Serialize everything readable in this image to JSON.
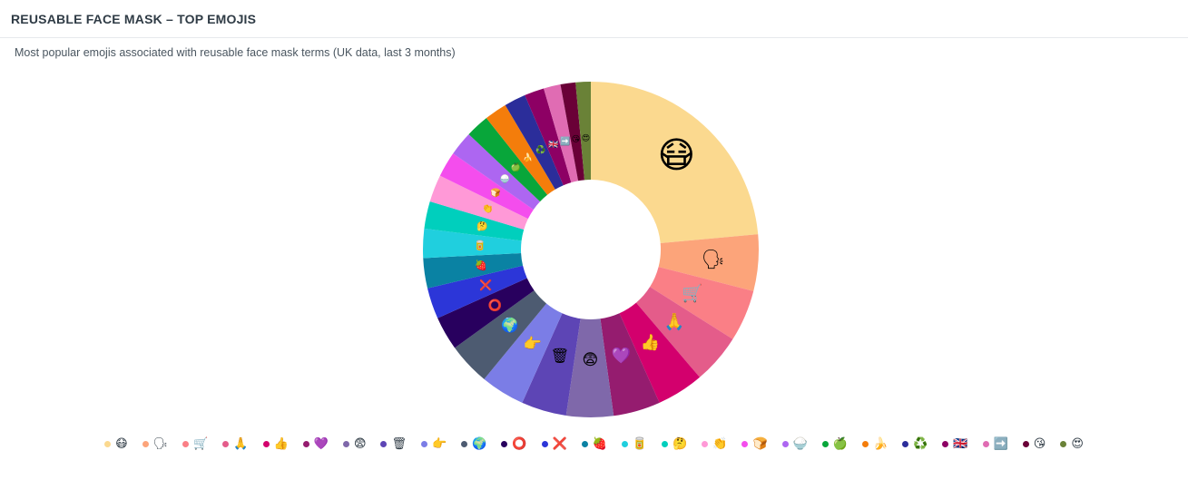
{
  "header": {
    "title": "REUSABLE FACE MASK – TOP EMOJIS"
  },
  "subtitle": "Most popular emojis associated with reusable face mask terms (UK data, last 3 months)",
  "chart_data": {
    "type": "pie",
    "donut": true,
    "legend_position": "bottom",
    "categories": [
      "😷",
      "🗣",
      "🛒",
      "🙏",
      "👍",
      "💜",
      "😨",
      "🗑",
      "👉",
      "🌍",
      "⭕",
      "❌",
      "🍓",
      "🥫",
      "🤔",
      "👏",
      "🍞",
      "🍚",
      "🍏",
      "🍌",
      "♻️",
      "🇬🇧",
      "➡️",
      "😘",
      "😍"
    ],
    "values": [
      26.0,
      6.0,
      5.5,
      5.3,
      5.0,
      5.0,
      5.0,
      4.8,
      4.7,
      4.5,
      3.6,
      3.3,
      3.2,
      3.1,
      2.9,
      2.9,
      2.7,
      2.6,
      2.5,
      2.4,
      2.3,
      2.1,
      1.8,
      1.6,
      1.6
    ],
    "colors": [
      "#fbd98f",
      "#fca47a",
      "#fa7f86",
      "#e45c8a",
      "#d3006d",
      "#951c6f",
      "#7f68aa",
      "#5d45b5",
      "#7b7de6",
      "#4d5b71",
      "#28005e",
      "#2c36d8",
      "#0a82a3",
      "#20cfde",
      "#00cfbd",
      "#ff99d7",
      "#f44ded",
      "#ad66f1",
      "#08a63a",
      "#f47d0b",
      "#2b2d9a",
      "#8d0064",
      "#e06cb3",
      "#6a0037",
      "#6a8237"
    ]
  }
}
